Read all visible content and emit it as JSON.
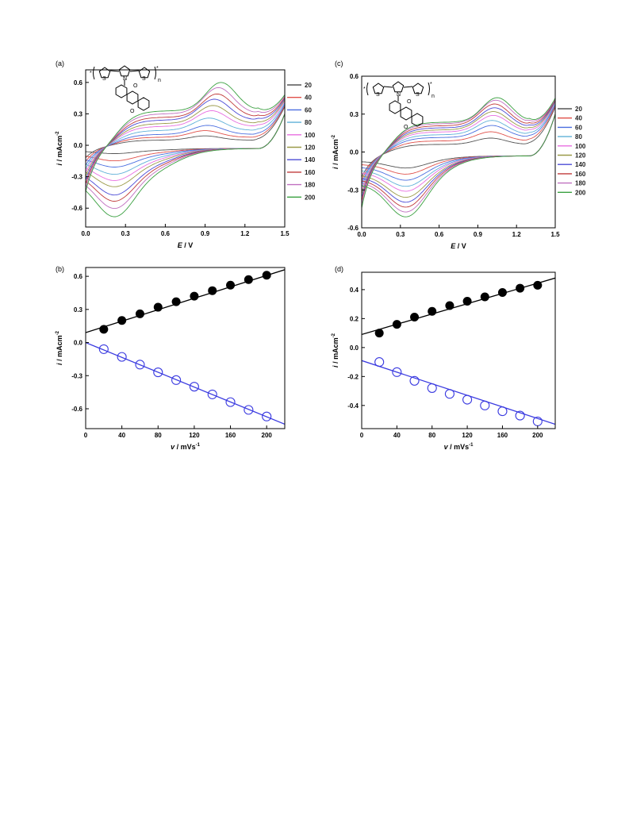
{
  "colors": {
    "axis": "#000000",
    "scan_rates": [
      "#555555",
      "#e0504a",
      "#4a6ee0",
      "#5fb0d8",
      "#e86ee0",
      "#9a9a48",
      "#4b4bd6",
      "#c03a3a",
      "#c070c0",
      "#3aa040"
    ],
    "fit_anodic": "#000000",
    "fit_cathodic": "#3a3ae0",
    "marker_filled": "#000000",
    "marker_open": "#3a3ae0"
  },
  "chart_data": [
    {
      "id": "a",
      "panel_label": "(a)",
      "type": "line",
      "xlabel_italic": "E",
      "xlabel_unit": " / V",
      "ylabel_italic": "i",
      "ylabel_unit": " / mAcm",
      "ylabel_exp": "-2",
      "xlim": [
        0,
        1.5
      ],
      "ylim": [
        -0.78,
        0.72
      ],
      "xticks": [
        "0.0",
        "0.3",
        "0.6",
        "0.9",
        "1.2",
        "1.5"
      ],
      "yticks": [
        "-0.6",
        "-0.3",
        "0.0",
        "0.3",
        "0.6"
      ],
      "legend_placement": "right",
      "series": [
        {
          "name": "20",
          "values": {
            "peak_x": 0.9,
            "anodic_peak": 0.09,
            "cathodic_peak": -0.05
          }
        },
        {
          "name": "40",
          "values": {
            "peak_x": 0.9,
            "anodic_peak": 0.14,
            "cathodic_peak": -0.12
          }
        },
        {
          "name": "60",
          "values": {
            "peak_x": 0.92,
            "anodic_peak": 0.19,
            "cathodic_peak": -0.18
          }
        },
        {
          "name": "80",
          "values": {
            "peak_x": 0.93,
            "anodic_peak": 0.26,
            "cathodic_peak": -0.25
          }
        },
        {
          "name": "100",
          "values": {
            "peak_x": 0.95,
            "anodic_peak": 0.33,
            "cathodic_peak": -0.31
          }
        },
        {
          "name": "120",
          "values": {
            "peak_x": 0.96,
            "anodic_peak": 0.38,
            "cathodic_peak": -0.37
          }
        },
        {
          "name": "140",
          "values": {
            "peak_x": 0.97,
            "anodic_peak": 0.44,
            "cathodic_peak": -0.45
          }
        },
        {
          "name": "160",
          "values": {
            "peak_x": 0.99,
            "anodic_peak": 0.49,
            "cathodic_peak": -0.51
          }
        },
        {
          "name": "180",
          "values": {
            "peak_x": 1.0,
            "anodic_peak": 0.55,
            "cathodic_peak": -0.58
          }
        },
        {
          "name": "200",
          "values": {
            "peak_x": 1.02,
            "anodic_peak": 0.6,
            "cathodic_peak": -0.66
          }
        }
      ]
    },
    {
      "id": "b",
      "panel_label": "(b)",
      "type": "scatter",
      "xlabel_italic": "v",
      "xlabel_unit": " / mVs",
      "xlabel_exp": "-1",
      "ylabel_italic": "i",
      "ylabel_unit": " / mAcm",
      "ylabel_exp": "-2",
      "xlim": [
        0,
        220
      ],
      "ylim": [
        -0.78,
        0.68
      ],
      "xticks": [
        "0",
        "40",
        "80",
        "120",
        "160",
        "200"
      ],
      "yticks": [
        "-0.6",
        "-0.3",
        "0.0",
        "0.3",
        "0.6"
      ],
      "x": [
        20,
        40,
        60,
        80,
        100,
        120,
        140,
        160,
        180,
        200
      ],
      "series": [
        {
          "kind": "anodic",
          "marker": "filled",
          "values": [
            0.12,
            0.2,
            0.26,
            0.32,
            0.37,
            0.42,
            0.47,
            0.52,
            0.57,
            0.61
          ]
        },
        {
          "kind": "cathodic",
          "marker": "open",
          "values": [
            -0.06,
            -0.13,
            -0.2,
            -0.27,
            -0.34,
            -0.4,
            -0.47,
            -0.54,
            -0.61,
            -0.67
          ]
        }
      ],
      "fits": [
        {
          "kind": "anodic",
          "x": [
            0,
            220
          ],
          "y": [
            0.09,
            0.66
          ]
        },
        {
          "kind": "cathodic",
          "x": [
            0,
            220
          ],
          "y": [
            0.0,
            -0.74
          ]
        }
      ]
    },
    {
      "id": "c",
      "panel_label": "(c)",
      "type": "line",
      "xlabel_italic": "E",
      "xlabel_unit": " / V",
      "ylabel_italic": "i",
      "ylabel_unit": " / mAcm",
      "ylabel_exp": "-2",
      "xlim": [
        0,
        1.5
      ],
      "ylim": [
        -0.6,
        0.6
      ],
      "xticks": [
        "0.0",
        "0.3",
        "0.6",
        "0.9",
        "1.2",
        "1.5"
      ],
      "yticks": [
        "-0.6",
        "-0.3",
        "0.0",
        "0.3",
        "0.6"
      ],
      "legend_placement": "right",
      "series": [
        {
          "name": "20",
          "values": {
            "peak_x": 1.0,
            "anodic_peak": 0.11,
            "cathodic_peak": -0.1
          }
        },
        {
          "name": "40",
          "values": {
            "peak_x": 1.0,
            "anodic_peak": 0.16,
            "cathodic_peak": -0.15
          }
        },
        {
          "name": "60",
          "values": {
            "peak_x": 1.01,
            "anodic_peak": 0.21,
            "cathodic_peak": -0.2
          }
        },
        {
          "name": "80",
          "values": {
            "peak_x": 1.01,
            "anodic_peak": 0.25,
            "cathodic_peak": -0.25
          }
        },
        {
          "name": "100",
          "values": {
            "peak_x": 1.02,
            "anodic_peak": 0.29,
            "cathodic_peak": -0.29
          }
        },
        {
          "name": "120",
          "values": {
            "peak_x": 1.02,
            "anodic_peak": 0.32,
            "cathodic_peak": -0.34
          }
        },
        {
          "name": "140",
          "values": {
            "peak_x": 1.03,
            "anodic_peak": 0.35,
            "cathodic_peak": -0.38
          }
        },
        {
          "name": "160",
          "values": {
            "peak_x": 1.03,
            "anodic_peak": 0.38,
            "cathodic_peak": -0.42
          }
        },
        {
          "name": "180",
          "values": {
            "peak_x": 1.04,
            "anodic_peak": 0.41,
            "cathodic_peak": -0.46
          }
        },
        {
          "name": "200",
          "values": {
            "peak_x": 1.05,
            "anodic_peak": 0.43,
            "cathodic_peak": -0.5
          }
        }
      ]
    },
    {
      "id": "d",
      "panel_label": "(d)",
      "type": "scatter",
      "xlabel_italic": "v",
      "xlabel_unit": " / mVs",
      "xlabel_exp": "-1",
      "ylabel_italic": "i",
      "ylabel_unit": " / mAcm",
      "ylabel_exp": "-2",
      "xlim": [
        0,
        220
      ],
      "ylim": [
        -0.56,
        0.52
      ],
      "xticks": [
        "0",
        "40",
        "80",
        "120",
        "160",
        "200"
      ],
      "yticks": [
        "-0.4",
        "-0.2",
        "0.0",
        "0.2",
        "0.4"
      ],
      "x": [
        20,
        40,
        60,
        80,
        100,
        120,
        140,
        160,
        180,
        200
      ],
      "series": [
        {
          "kind": "anodic",
          "marker": "filled",
          "values": [
            0.1,
            0.16,
            0.21,
            0.25,
            0.29,
            0.32,
            0.35,
            0.38,
            0.41,
            0.43
          ]
        },
        {
          "kind": "cathodic",
          "marker": "open",
          "values": [
            -0.1,
            -0.17,
            -0.23,
            -0.28,
            -0.32,
            -0.36,
            -0.4,
            -0.44,
            -0.47,
            -0.51
          ]
        }
      ],
      "fits": [
        {
          "kind": "anodic",
          "x": [
            0,
            220
          ],
          "y": [
            0.09,
            0.48
          ]
        },
        {
          "kind": "cathodic",
          "x": [
            0,
            220
          ],
          "y": [
            -0.09,
            -0.53
          ]
        }
      ]
    }
  ],
  "structures": {
    "a": {
      "star": "*",
      "n": "n",
      "sulfur": "S",
      "nitrogen": "N",
      "oxygen": "O"
    },
    "c": {
      "star": "*",
      "n": "n",
      "sulfur": "S",
      "nitrogen": "N",
      "oxygen": "O"
    }
  }
}
